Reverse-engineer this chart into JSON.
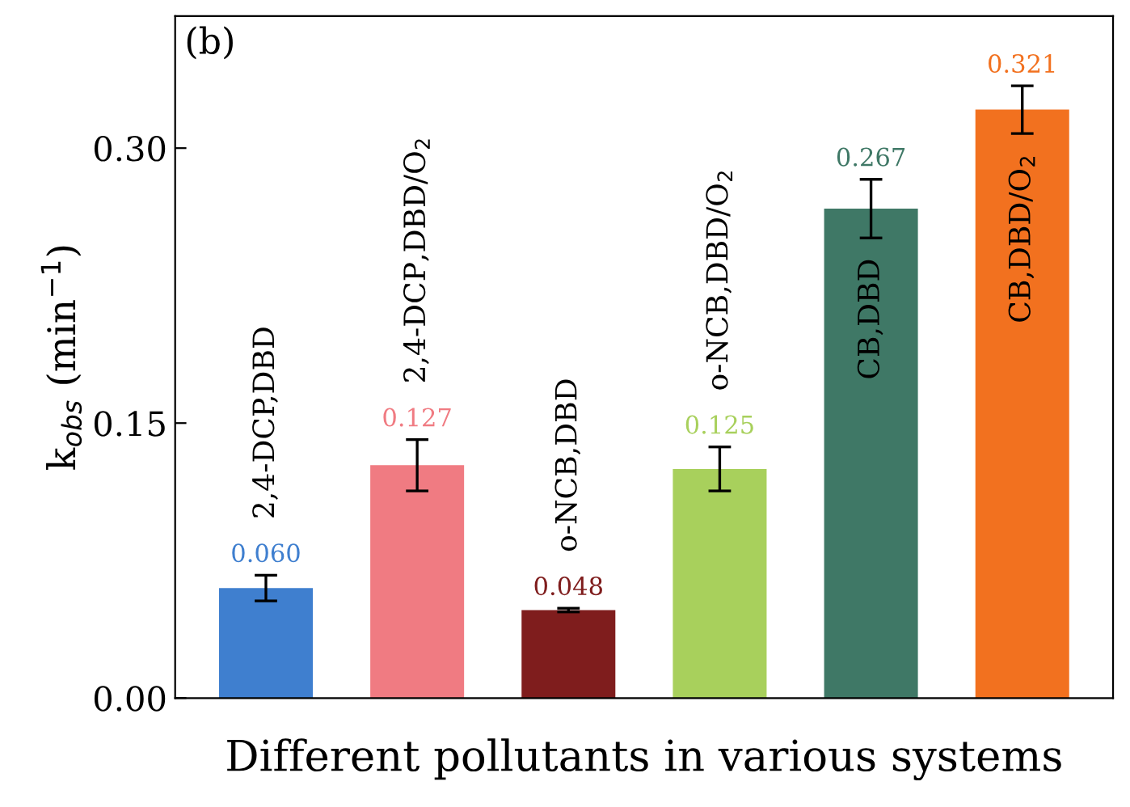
{
  "chart_data": {
    "type": "bar",
    "categories": [
      "2,4-DCP,DBD",
      "2,4-DCP,DBD/O$_{2}$",
      "o-NCB,DBD",
      "o-NCB,DBD/O$_{2}$",
      "CB,DBD",
      "CB,DBD/O$_{2}$"
    ],
    "values": [
      0.06,
      0.127,
      0.048,
      0.125,
      0.267,
      0.321
    ],
    "errors": [
      0.007,
      0.014,
      0.001,
      0.012,
      0.016,
      0.013
    ],
    "value_labels": [
      "0.060",
      "0.127",
      "0.048",
      "0.125",
      "0.267",
      "0.321"
    ],
    "colors": [
      "#3f7fcf",
      "#f07b82",
      "#7f1d1d",
      "#a8d05c",
      "#3f7866",
      "#f2711f"
    ],
    "xlabel": "Different pollutants in various systems",
    "ylabel": "k$_{obs}$ (min$^{−1}$)",
    "ylim": [
      0,
      0.372
    ],
    "yticks": [
      {
        "value": 0,
        "label": "0.00"
      },
      {
        "value": 0.15,
        "label": "0.15"
      },
      {
        "value": 0.3,
        "label": "0.30"
      }
    ],
    "tick_labels": "y",
    "annotations": [
      "(b)"
    ],
    "grid": false,
    "legend": false
  }
}
